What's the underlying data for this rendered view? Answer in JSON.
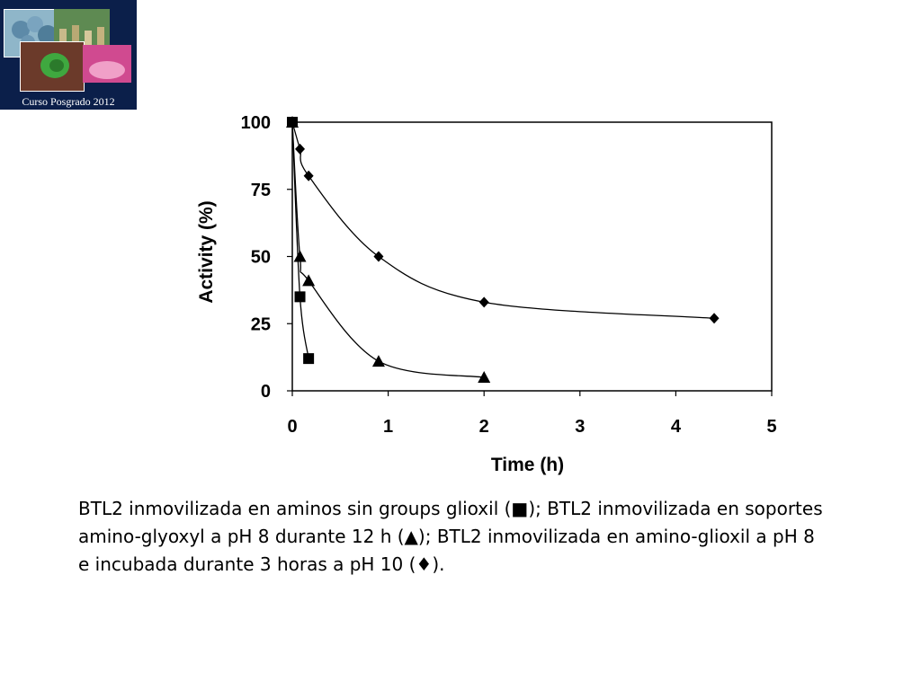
{
  "logo": {
    "caption": "Curso Posgrado 2012",
    "background": "#0b1f4a"
  },
  "chart_data": {
    "type": "scatter",
    "xlabel": "Time (h)",
    "ylabel": "Activity (%)",
    "xlim": [
      0,
      5
    ],
    "ylim": [
      0,
      100
    ],
    "xticks": [
      0,
      1,
      2,
      3,
      4,
      5
    ],
    "yticks": [
      0,
      25,
      50,
      75,
      100
    ],
    "grid": false,
    "connect": "smooth-line",
    "series": [
      {
        "marker": "square",
        "x": [
          0,
          0.08,
          0.17
        ],
        "y": [
          100,
          35,
          12
        ]
      },
      {
        "marker": "triangle",
        "x": [
          0,
          0.08,
          0.17,
          0.9,
          2.0
        ],
        "y": [
          100,
          50,
          41,
          11,
          5
        ]
      },
      {
        "marker": "diamond",
        "x": [
          0,
          0.08,
          0.17,
          0.9,
          2.0,
          4.4
        ],
        "y": [
          100,
          90,
          80,
          50,
          33,
          27
        ]
      }
    ]
  },
  "caption": {
    "line1": "BTL2 inmovilizada en aminos sin groups glioxil (■); BTL2 inmovilizada en soportes",
    "line2": "amino-glyoxyl a pH 8 durante 12 h (▲); BTL2 inmovilizada en amino-glioxil a pH 8",
    "line3": "e incubada durante 3 horas a pH 10 (♦)."
  }
}
